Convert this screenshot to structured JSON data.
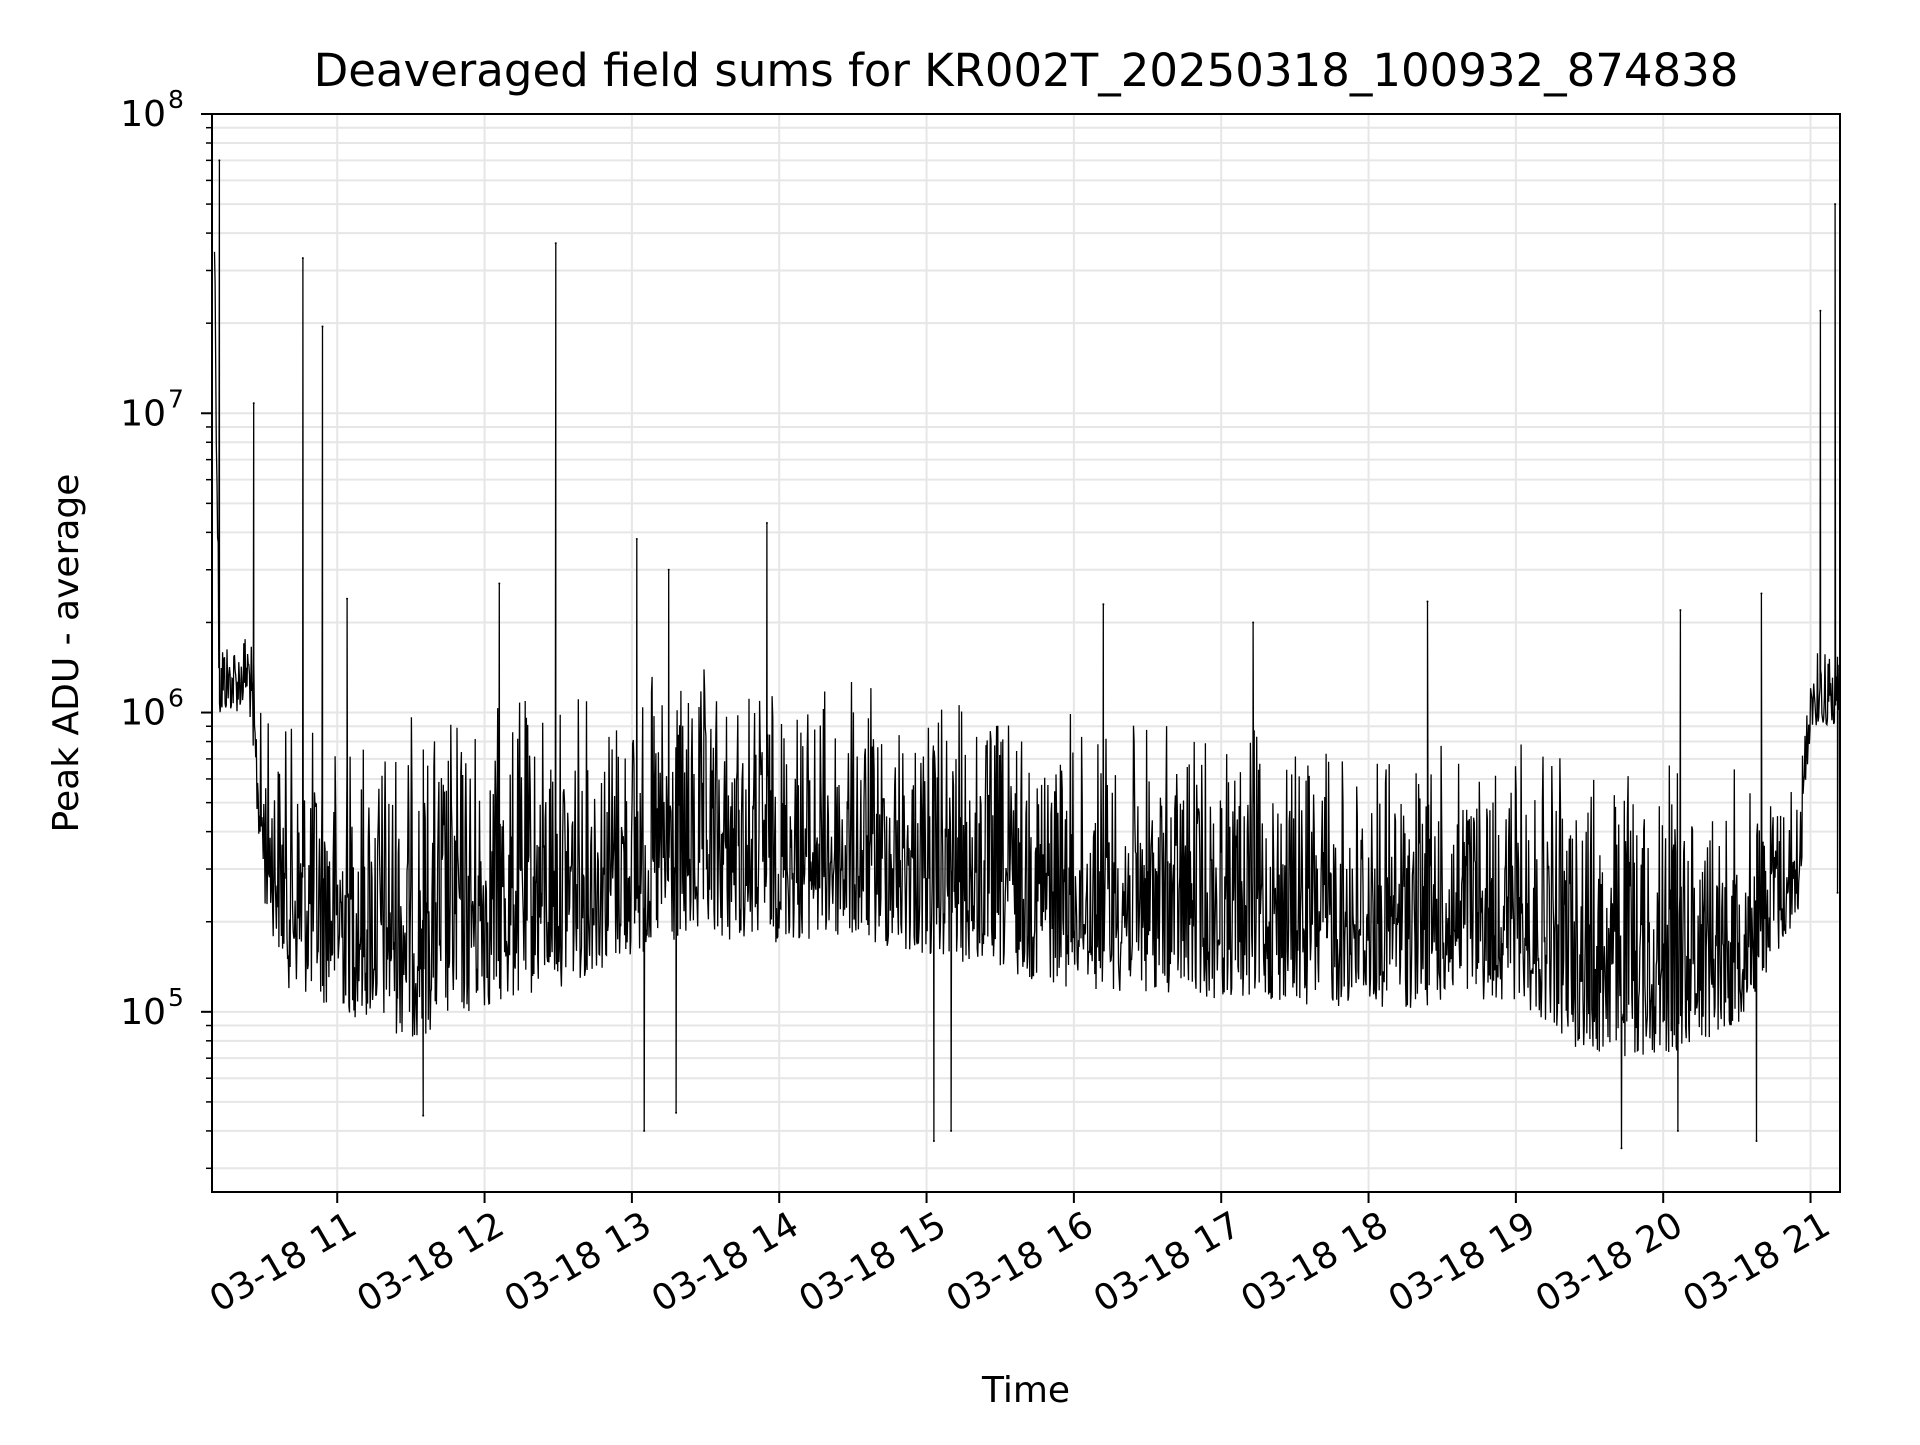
{
  "chart_data": {
    "type": "line",
    "title": "Deaveraged field sums for KR002T_20250318_100932_874838",
    "xlabel": "Time",
    "ylabel": "Peak ADU - average",
    "x_start": "2025-03-18 10:09",
    "x_end": "2025-03-18 21:12",
    "xlim": [
      "2025-03-18 10:09",
      "2025-03-18 21:12"
    ],
    "ylim": [
      25000,
      100000000
    ],
    "yscale": "log",
    "grid": true,
    "legend": "none",
    "line_color": "#000000",
    "grid_color": "#e6e6e6",
    "x_ticks": [
      {
        "time": "2025-03-18 11:00",
        "label": "03-18 11"
      },
      {
        "time": "2025-03-18 12:00",
        "label": "03-18 12"
      },
      {
        "time": "2025-03-18 13:00",
        "label": "03-18 13"
      },
      {
        "time": "2025-03-18 14:00",
        "label": "03-18 14"
      },
      {
        "time": "2025-03-18 15:00",
        "label": "03-18 15"
      },
      {
        "time": "2025-03-18 16:00",
        "label": "03-18 16"
      },
      {
        "time": "2025-03-18 17:00",
        "label": "03-18 17"
      },
      {
        "time": "2025-03-18 18:00",
        "label": "03-18 18"
      },
      {
        "time": "2025-03-18 19:00",
        "label": "03-18 19"
      },
      {
        "time": "2025-03-18 20:00",
        "label": "03-18 20"
      },
      {
        "time": "2025-03-18 21:00",
        "label": "03-18 21"
      }
    ],
    "y_ticks": [
      {
        "value": 100000,
        "base": "10",
        "exp": "5"
      },
      {
        "value": 1000000,
        "base": "10",
        "exp": "6"
      },
      {
        "value": 10000000,
        "base": "10",
        "exp": "7"
      },
      {
        "value": 100000000,
        "base": "10",
        "exp": "8"
      }
    ],
    "envelope": {
      "times": [
        "2025-03-18 10:10",
        "2025-03-18 10:12",
        "2025-03-18 10:15",
        "2025-03-18 10:20",
        "2025-03-18 10:24",
        "2025-03-18 10:27",
        "2025-03-18 10:30",
        "2025-03-18 10:40",
        "2025-03-18 11:00",
        "2025-03-18 11:30",
        "2025-03-18 12:00",
        "2025-03-18 12:30",
        "2025-03-18 13:00",
        "2025-03-18 13:30",
        "2025-03-18 14:00",
        "2025-03-18 14:30",
        "2025-03-18 15:00",
        "2025-03-18 16:00",
        "2025-03-18 17:00",
        "2025-03-18 18:00",
        "2025-03-18 19:00",
        "2025-03-18 19:30",
        "2025-03-18 20:00",
        "2025-03-18 20:30",
        "2025-03-18 20:55",
        "2025-03-18 21:00",
        "2025-03-18 21:05",
        "2025-03-18 21:12"
      ],
      "high": [
        60000000,
        2500000,
        2000000,
        2000000,
        2200000,
        1300000,
        1100000,
        1000000,
        1000000,
        1100000,
        1200000,
        1300000,
        1400000,
        1450000,
        1400000,
        1350000,
        1200000,
        1050000,
        950000,
        850000,
        800000,
        750000,
        750000,
        700000,
        650000,
        1600000,
        1900000,
        1800000
      ],
      "low": [
        30000000,
        900000,
        1000000,
        1000000,
        1100000,
        450000,
        230000,
        120000,
        100000,
        80000,
        100000,
        120000,
        150000,
        170000,
        170000,
        170000,
        150000,
        120000,
        110000,
        100000,
        110000,
        70000,
        70000,
        90000,
        200000,
        900000,
        900000,
        900000
      ]
    },
    "spikes": [
      {
        "time": "2025-03-18 10:12",
        "value": 70000000
      },
      {
        "time": "2025-03-18 10:26",
        "value": 10800000
      },
      {
        "time": "2025-03-18 10:46",
        "value": 33000000
      },
      {
        "time": "2025-03-18 10:54",
        "value": 19500000
      },
      {
        "time": "2025-03-18 11:04",
        "value": 2400000
      },
      {
        "time": "2025-03-18 12:06",
        "value": 2700000
      },
      {
        "time": "2025-03-18 12:29",
        "value": 37000000
      },
      {
        "time": "2025-03-18 13:02",
        "value": 3800000
      },
      {
        "time": "2025-03-18 13:15",
        "value": 3000000
      },
      {
        "time": "2025-03-18 13:55",
        "value": 4300000
      },
      {
        "time": "2025-03-18 16:12",
        "value": 2300000
      },
      {
        "time": "2025-03-18 17:13",
        "value": 2000000
      },
      {
        "time": "2025-03-18 18:24",
        "value": 2350000
      },
      {
        "time": "2025-03-18 20:07",
        "value": 2200000
      },
      {
        "time": "2025-03-18 20:40",
        "value": 2500000
      },
      {
        "time": "2025-03-18 21:04",
        "value": 22000000
      },
      {
        "time": "2025-03-18 21:10",
        "value": 50000000
      }
    ],
    "dips": [
      {
        "time": "2025-03-18 11:35",
        "value": 45000
      },
      {
        "time": "2025-03-18 13:05",
        "value": 40000
      },
      {
        "time": "2025-03-18 13:18",
        "value": 46000
      },
      {
        "time": "2025-03-18 15:03",
        "value": 37000
      },
      {
        "time": "2025-03-18 15:10",
        "value": 40000
      },
      {
        "time": "2025-03-18 19:43",
        "value": 35000
      },
      {
        "time": "2025-03-18 20:06",
        "value": 40000
      },
      {
        "time": "2025-03-18 20:38",
        "value": 37000
      },
      {
        "time": "2025-03-18 21:11",
        "value": 250000
      }
    ]
  }
}
